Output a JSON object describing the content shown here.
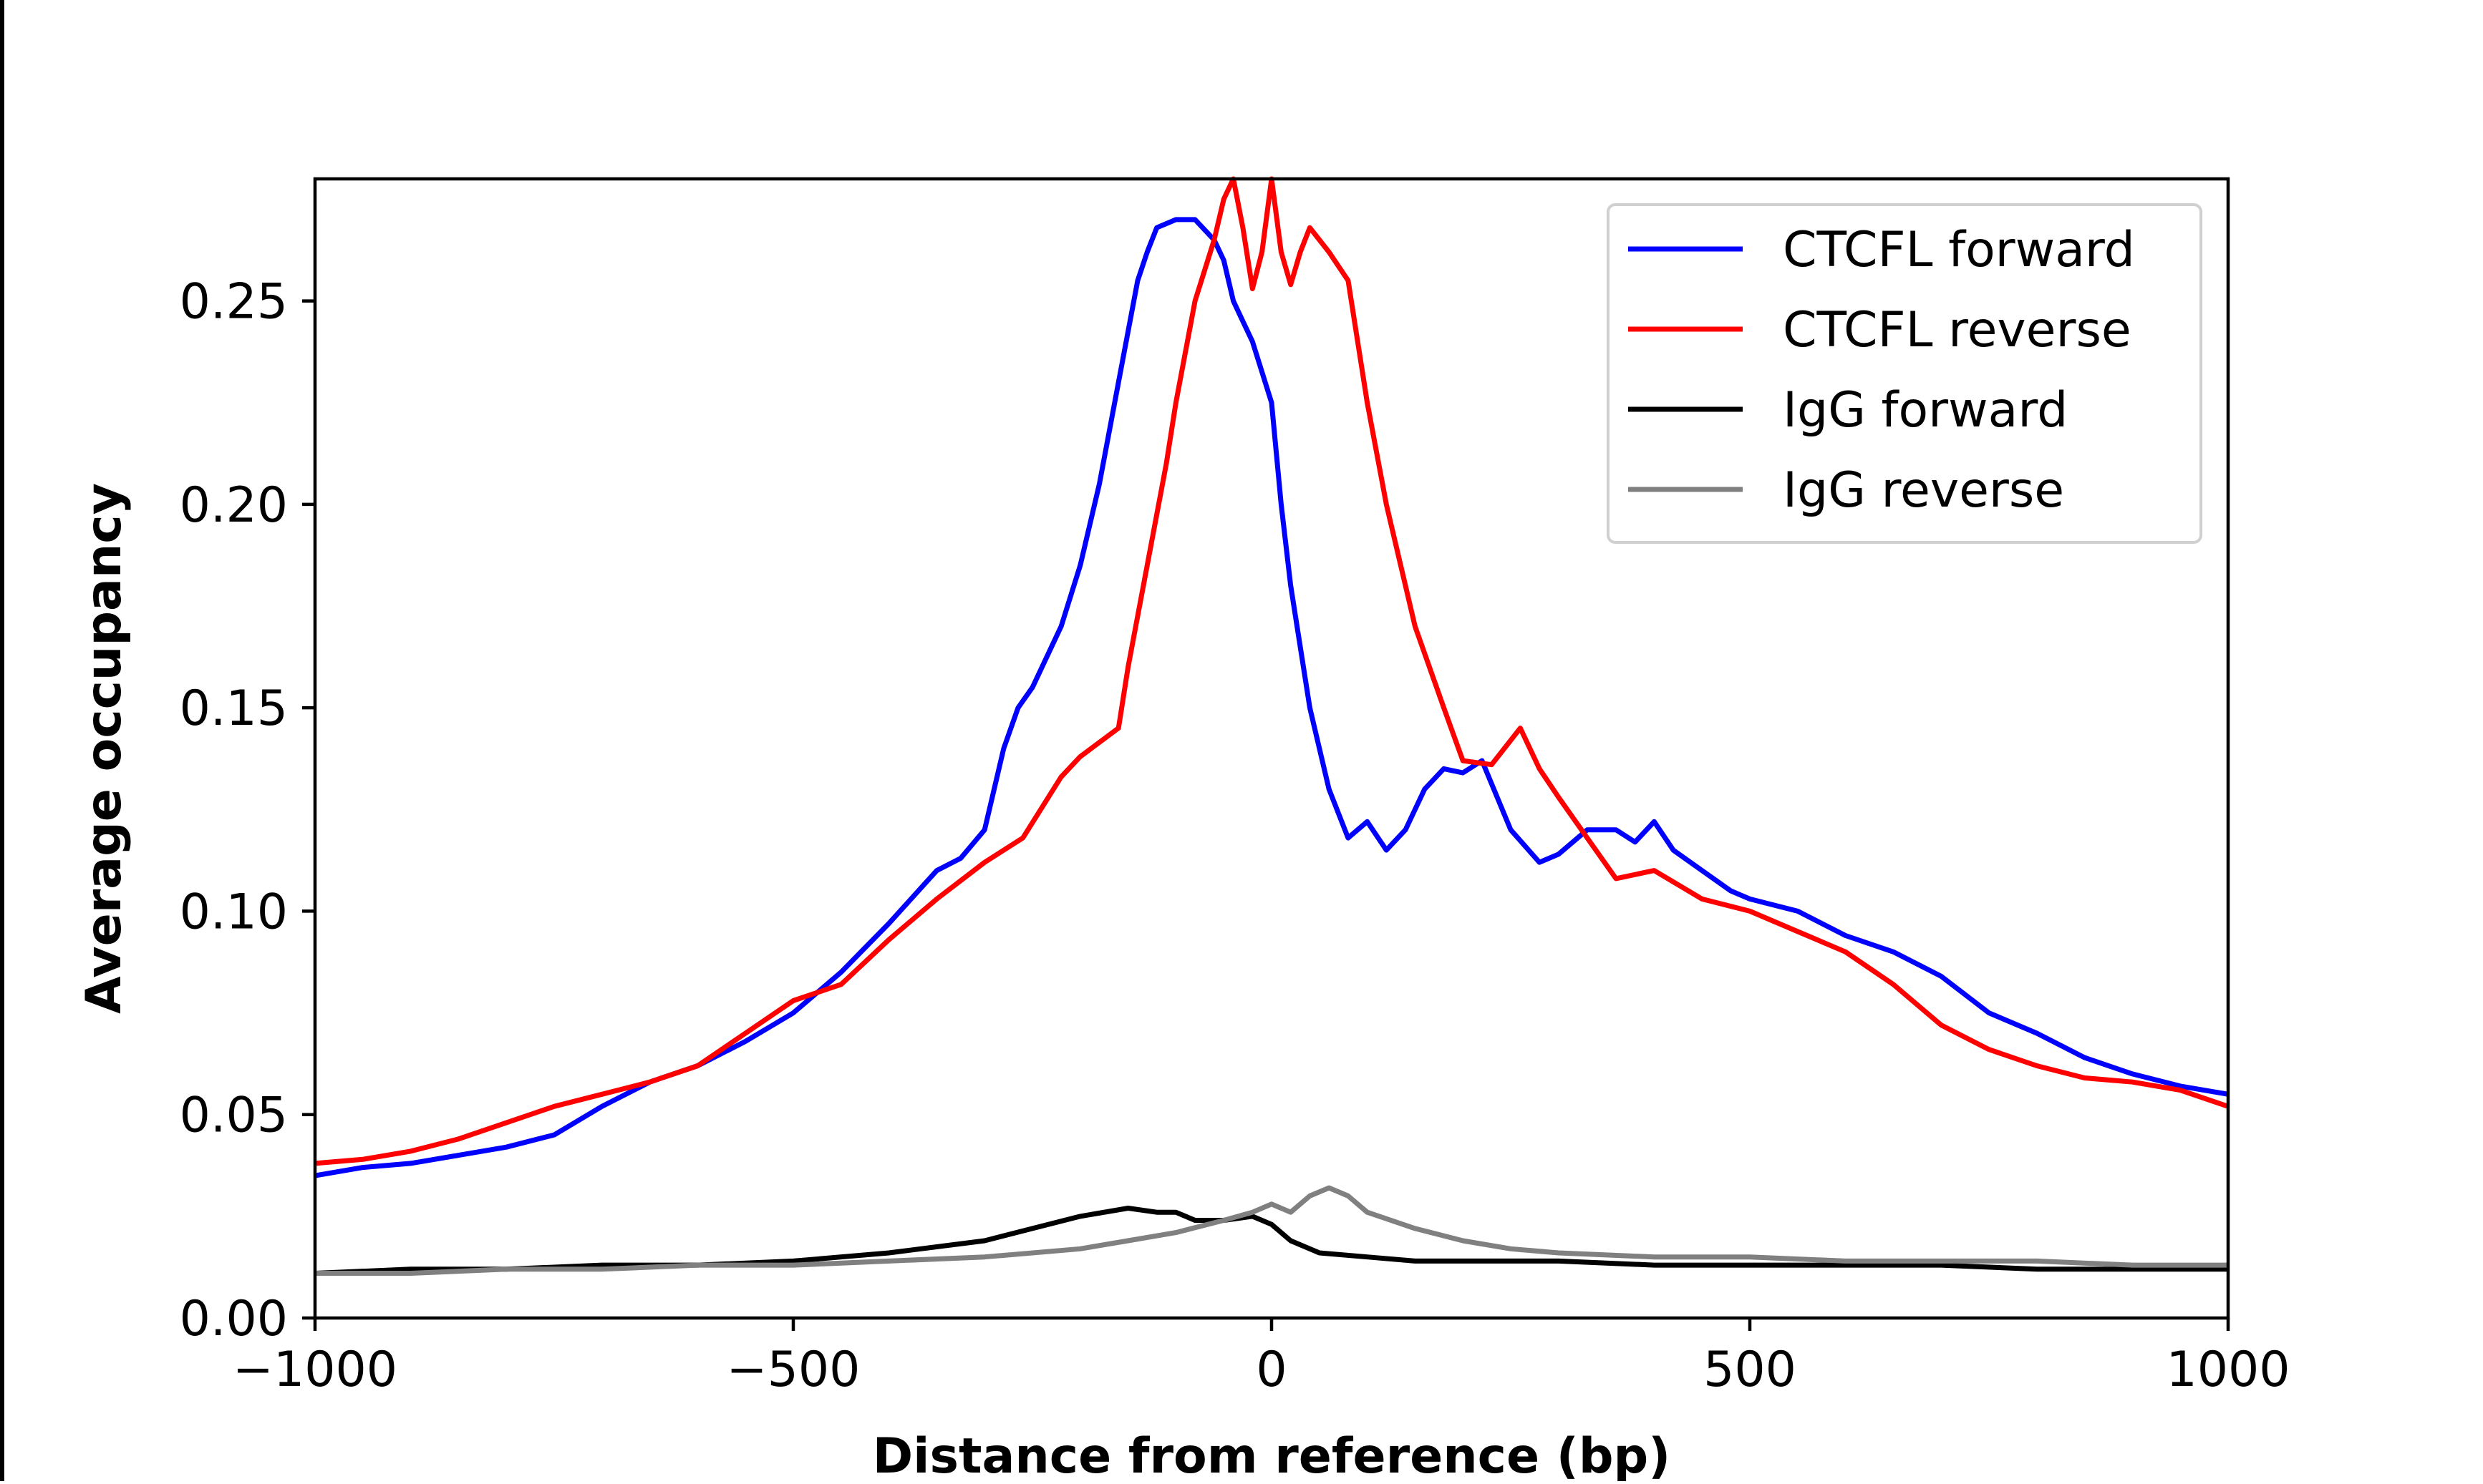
{
  "chart_data": {
    "type": "line",
    "title": "",
    "xlabel": "Distance from reference (bp)",
    "ylabel": "Average occupancy",
    "xlim": [
      -1000,
      1000
    ],
    "ylim": [
      0,
      0.28
    ],
    "xticks": [
      -1000,
      -500,
      0,
      500,
      1000
    ],
    "xtick_labels": [
      "−1000",
      "−500",
      "0",
      "500",
      "1000"
    ],
    "yticks": [
      0,
      0.05,
      0.1,
      0.15,
      0.2,
      0.25
    ],
    "ytick_labels": [
      "0.00",
      "0.05",
      "0.10",
      "0.15",
      "0.20",
      "0.25"
    ],
    "grid": false,
    "legend_position": "top-right",
    "series": [
      {
        "name": "CTCFL forward",
        "color": "#0000ff",
        "x": [
          -1000,
          -950,
          -900,
          -850,
          -800,
          -750,
          -700,
          -650,
          -600,
          -550,
          -500,
          -450,
          -400,
          -350,
          -325,
          -300,
          -280,
          -265,
          -250,
          -220,
          -200,
          -180,
          -160,
          -140,
          -130,
          -120,
          -100,
          -80,
          -60,
          -50,
          -40,
          -30,
          -20,
          0,
          10,
          20,
          40,
          60,
          80,
          90,
          100,
          120,
          140,
          160,
          180,
          200,
          220,
          250,
          280,
          300,
          330,
          360,
          380,
          400,
          420,
          450,
          480,
          500,
          550,
          600,
          650,
          700,
          750,
          800,
          850,
          900,
          950,
          1000
        ],
        "y": [
          0.035,
          0.037,
          0.038,
          0.04,
          0.042,
          0.045,
          0.052,
          0.058,
          0.062,
          0.068,
          0.075,
          0.085,
          0.097,
          0.11,
          0.113,
          0.12,
          0.14,
          0.15,
          0.155,
          0.17,
          0.185,
          0.205,
          0.23,
          0.255,
          0.262,
          0.268,
          0.27,
          0.27,
          0.265,
          0.26,
          0.25,
          0.245,
          0.24,
          0.225,
          0.2,
          0.18,
          0.15,
          0.13,
          0.118,
          0.12,
          0.122,
          0.115,
          0.12,
          0.13,
          0.135,
          0.134,
          0.137,
          0.12,
          0.112,
          0.114,
          0.12,
          0.12,
          0.117,
          0.122,
          0.115,
          0.11,
          0.105,
          0.103,
          0.1,
          0.094,
          0.09,
          0.084,
          0.075,
          0.07,
          0.064,
          0.06,
          0.057,
          0.055
        ]
      },
      {
        "name": "CTCFL reverse",
        "color": "#ff0000",
        "x": [
          -1000,
          -950,
          -900,
          -850,
          -800,
          -750,
          -700,
          -650,
          -600,
          -550,
          -500,
          -450,
          -400,
          -350,
          -300,
          -260,
          -220,
          -200,
          -160,
          -150,
          -130,
          -110,
          -100,
          -80,
          -60,
          -50,
          -40,
          -30,
          -20,
          -10,
          0,
          10,
          20,
          30,
          40,
          60,
          80,
          100,
          120,
          150,
          180,
          200,
          230,
          260,
          280,
          300,
          330,
          360,
          400,
          450,
          500,
          550,
          600,
          650,
          700,
          750,
          800,
          850,
          900,
          950,
          1000
        ],
        "y": [
          0.038,
          0.039,
          0.041,
          0.044,
          0.048,
          0.052,
          0.055,
          0.058,
          0.062,
          0.07,
          0.078,
          0.082,
          0.093,
          0.103,
          0.112,
          0.118,
          0.133,
          0.138,
          0.145,
          0.16,
          0.185,
          0.21,
          0.225,
          0.25,
          0.265,
          0.275,
          0.28,
          0.268,
          0.253,
          0.262,
          0.28,
          0.262,
          0.254,
          0.262,
          0.268,
          0.262,
          0.255,
          0.225,
          0.2,
          0.17,
          0.15,
          0.137,
          0.136,
          0.145,
          0.135,
          0.128,
          0.118,
          0.108,
          0.11,
          0.103,
          0.1,
          0.095,
          0.09,
          0.082,
          0.072,
          0.066,
          0.062,
          0.059,
          0.058,
          0.056,
          0.052
        ]
      },
      {
        "name": "IgG forward",
        "color": "#000000",
        "x": [
          -1000,
          -900,
          -800,
          -700,
          -600,
          -500,
          -400,
          -300,
          -250,
          -200,
          -150,
          -120,
          -100,
          -80,
          -50,
          -20,
          0,
          20,
          50,
          100,
          150,
          200,
          300,
          400,
          500,
          600,
          700,
          800,
          900,
          1000
        ],
        "y": [
          0.011,
          0.012,
          0.012,
          0.013,
          0.013,
          0.014,
          0.016,
          0.019,
          0.022,
          0.025,
          0.027,
          0.026,
          0.026,
          0.024,
          0.024,
          0.025,
          0.023,
          0.019,
          0.016,
          0.015,
          0.014,
          0.014,
          0.014,
          0.013,
          0.013,
          0.013,
          0.013,
          0.012,
          0.012,
          0.012
        ]
      },
      {
        "name": "IgG reverse",
        "color": "#808080",
        "x": [
          -1000,
          -900,
          -800,
          -700,
          -600,
          -500,
          -400,
          -300,
          -200,
          -150,
          -100,
          -50,
          -20,
          0,
          20,
          40,
          60,
          80,
          100,
          150,
          200,
          250,
          300,
          400,
          500,
          600,
          700,
          800,
          900,
          1000
        ],
        "y": [
          0.011,
          0.011,
          0.012,
          0.012,
          0.013,
          0.013,
          0.014,
          0.015,
          0.017,
          0.019,
          0.021,
          0.024,
          0.026,
          0.028,
          0.026,
          0.03,
          0.032,
          0.03,
          0.026,
          0.022,
          0.019,
          0.017,
          0.016,
          0.015,
          0.015,
          0.014,
          0.014,
          0.014,
          0.013,
          0.013
        ]
      }
    ]
  }
}
